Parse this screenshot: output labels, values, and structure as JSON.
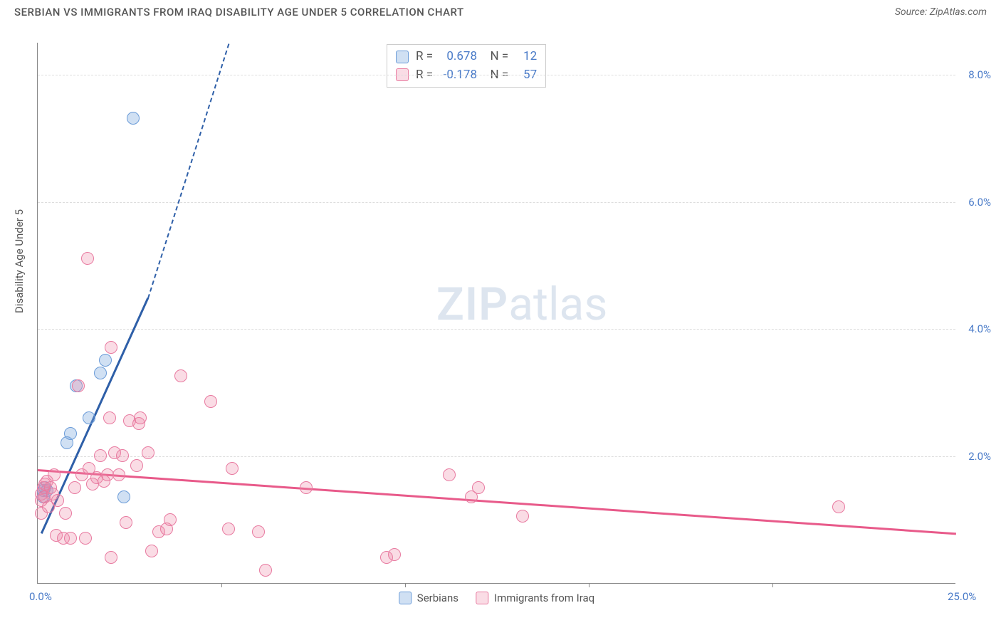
{
  "header": {
    "title": "SERBIAN VS IMMIGRANTS FROM IRAQ DISABILITY AGE UNDER 5 CORRELATION CHART",
    "source": "Source: ZipAtlas.com"
  },
  "chart": {
    "type": "scatter",
    "ylabel": "Disability Age Under 5",
    "xlim": [
      0,
      25
    ],
    "ylim": [
      0,
      8.5
    ],
    "xticks": [
      {
        "value": 0,
        "label": "0.0%"
      },
      {
        "value": 25,
        "label": "25.0%"
      }
    ],
    "xtick_marks": [
      5,
      10,
      15,
      20
    ],
    "yticks": [
      {
        "value": 2,
        "label": "2.0%"
      },
      {
        "value": 4,
        "label": "4.0%"
      },
      {
        "value": 6,
        "label": "6.0%"
      },
      {
        "value": 8,
        "label": "8.0%"
      }
    ],
    "background_color": "#ffffff",
    "grid_color": "#dddddd",
    "axis_color": "#888888",
    "tick_label_color": "#4a7bc8",
    "point_radius": 9,
    "series": [
      {
        "name": "Serbians",
        "fill": "rgba(120,165,220,0.35)",
        "stroke": "#6a9bd8",
        "trend_color": "#2e5fa8",
        "trend": {
          "x1": 0.1,
          "y1": 0.8,
          "x2": 3.0,
          "y2": 4.5,
          "dash_to_x": 5.2,
          "dash_to_y": 8.5
        },
        "stats": {
          "R": "0.678",
          "N": "12"
        },
        "points": [
          {
            "x": 0.15,
            "y": 1.35
          },
          {
            "x": 0.15,
            "y": 1.45
          },
          {
            "x": 0.2,
            "y": 1.5
          },
          {
            "x": 0.25,
            "y": 1.45
          },
          {
            "x": 0.8,
            "y": 2.2
          },
          {
            "x": 0.9,
            "y": 2.35
          },
          {
            "x": 1.05,
            "y": 3.1
          },
          {
            "x": 1.4,
            "y": 2.6
          },
          {
            "x": 1.7,
            "y": 3.3
          },
          {
            "x": 1.85,
            "y": 3.5
          },
          {
            "x": 2.35,
            "y": 1.35
          },
          {
            "x": 2.6,
            "y": 7.3
          }
        ]
      },
      {
        "name": "Immigrants from Iraq",
        "fill": "rgba(240,140,170,0.3)",
        "stroke": "#e87aa0",
        "trend_color": "#e85a8a",
        "trend": {
          "x1": 0,
          "y1": 1.8,
          "x2": 25,
          "y2": 0.8
        },
        "stats": {
          "R": "-0.178",
          "N": "57"
        },
        "points": [
          {
            "x": 0.1,
            "y": 1.1
          },
          {
            "x": 0.1,
            "y": 1.3
          },
          {
            "x": 0.1,
            "y": 1.4
          },
          {
            "x": 0.15,
            "y": 1.5
          },
          {
            "x": 0.2,
            "y": 1.35
          },
          {
            "x": 0.2,
            "y": 1.55
          },
          {
            "x": 0.25,
            "y": 1.6
          },
          {
            "x": 0.3,
            "y": 1.2
          },
          {
            "x": 0.35,
            "y": 1.5
          },
          {
            "x": 0.4,
            "y": 1.4
          },
          {
            "x": 0.45,
            "y": 1.7
          },
          {
            "x": 0.5,
            "y": 0.75
          },
          {
            "x": 0.55,
            "y": 1.3
          },
          {
            "x": 0.7,
            "y": 0.7
          },
          {
            "x": 0.75,
            "y": 1.1
          },
          {
            "x": 0.9,
            "y": 0.7
          },
          {
            "x": 1.0,
            "y": 1.5
          },
          {
            "x": 1.1,
            "y": 3.1
          },
          {
            "x": 1.2,
            "y": 1.7
          },
          {
            "x": 1.3,
            "y": 0.7
          },
          {
            "x": 1.35,
            "y": 5.1
          },
          {
            "x": 1.4,
            "y": 1.8
          },
          {
            "x": 1.5,
            "y": 1.55
          },
          {
            "x": 1.6,
            "y": 1.65
          },
          {
            "x": 1.7,
            "y": 2.0
          },
          {
            "x": 1.8,
            "y": 1.6
          },
          {
            "x": 1.9,
            "y": 1.7
          },
          {
            "x": 1.95,
            "y": 2.6
          },
          {
            "x": 2.0,
            "y": 3.7
          },
          {
            "x": 2.1,
            "y": 2.05
          },
          {
            "x": 2.2,
            "y": 1.7
          },
          {
            "x": 2.3,
            "y": 2.0
          },
          {
            "x": 2.4,
            "y": 0.95
          },
          {
            "x": 2.5,
            "y": 2.55
          },
          {
            "x": 2.7,
            "y": 1.85
          },
          {
            "x": 2.75,
            "y": 2.5
          },
          {
            "x": 2.8,
            "y": 2.6
          },
          {
            "x": 3.0,
            "y": 2.05
          },
          {
            "x": 3.1,
            "y": 0.5
          },
          {
            "x": 3.3,
            "y": 0.8
          },
          {
            "x": 3.5,
            "y": 0.85
          },
          {
            "x": 3.6,
            "y": 1.0
          },
          {
            "x": 3.9,
            "y": 3.25
          },
          {
            "x": 4.7,
            "y": 2.85
          },
          {
            "x": 5.2,
            "y": 0.85
          },
          {
            "x": 5.3,
            "y": 1.8
          },
          {
            "x": 6.0,
            "y": 0.8
          },
          {
            "x": 6.2,
            "y": 0.2
          },
          {
            "x": 7.3,
            "y": 1.5
          },
          {
            "x": 9.5,
            "y": 0.4
          },
          {
            "x": 9.7,
            "y": 0.45
          },
          {
            "x": 11.2,
            "y": 1.7
          },
          {
            "x": 11.8,
            "y": 1.35
          },
          {
            "x": 12.0,
            "y": 1.5
          },
          {
            "x": 13.2,
            "y": 1.05
          },
          {
            "x": 21.8,
            "y": 1.2
          },
          {
            "x": 2.0,
            "y": 0.4
          }
        ]
      }
    ],
    "legend_labels": [
      "Serbians",
      "Immigrants from Iraq"
    ],
    "watermark": {
      "zip": "ZIP",
      "atlas": "atlas"
    }
  }
}
